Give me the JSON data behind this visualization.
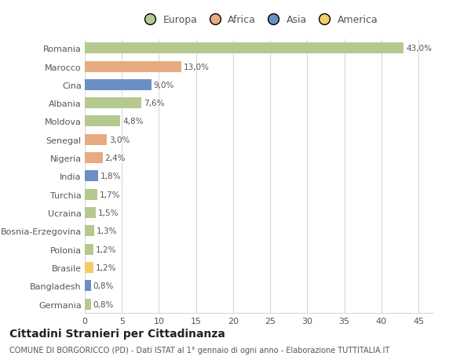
{
  "countries": [
    "Romania",
    "Marocco",
    "Cina",
    "Albania",
    "Moldova",
    "Senegal",
    "Nigeria",
    "India",
    "Turchia",
    "Ucraina",
    "Bosnia-Erzegovina",
    "Polonia",
    "Brasile",
    "Bangladesh",
    "Germania"
  ],
  "values": [
    43.0,
    13.0,
    9.0,
    7.6,
    4.8,
    3.0,
    2.4,
    1.8,
    1.7,
    1.5,
    1.3,
    1.2,
    1.2,
    0.8,
    0.8
  ],
  "labels": [
    "43,0%",
    "13,0%",
    "9,0%",
    "7,6%",
    "4,8%",
    "3,0%",
    "2,4%",
    "1,8%",
    "1,7%",
    "1,5%",
    "1,3%",
    "1,2%",
    "1,2%",
    "0,8%",
    "0,8%"
  ],
  "colors": [
    "#b5c98e",
    "#e8aa80",
    "#6b8ec4",
    "#b5c98e",
    "#b5c98e",
    "#e8aa80",
    "#e8aa80",
    "#6b8ec4",
    "#b5c98e",
    "#b5c98e",
    "#b5c98e",
    "#b5c98e",
    "#f5cc6a",
    "#6b8ec4",
    "#b5c98e"
  ],
  "legend_labels": [
    "Europa",
    "Africa",
    "Asia",
    "America"
  ],
  "legend_colors": [
    "#b5c98e",
    "#e8aa80",
    "#6b8ec4",
    "#f5cc6a"
  ],
  "title": "Cittadini Stranieri per Cittadinanza",
  "subtitle": "COMUNE DI BORGORICCO (PD) - Dati ISTAT al 1° gennaio di ogni anno - Elaborazione TUTTITALIA.IT",
  "xlim": [
    0,
    47
  ],
  "xticks": [
    0,
    5,
    10,
    15,
    20,
    25,
    30,
    35,
    40,
    45
  ],
  "bg_color": "#ffffff",
  "grid_color": "#d8d8d8",
  "bar_height": 0.6,
  "label_fontsize": 7.5,
  "tick_fontsize": 8,
  "text_color": "#555555",
  "title_fontsize": 10,
  "subtitle_fontsize": 7
}
